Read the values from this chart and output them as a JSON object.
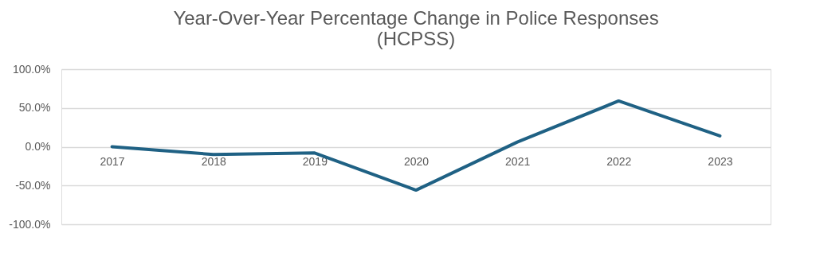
{
  "chart_data": {
    "type": "line",
    "title": [
      "Year-Over-Year Percentage Change in Police Responses",
      "(HCPSS)"
    ],
    "categories": [
      "2017",
      "2018",
      "2019",
      "2020",
      "2021",
      "2022",
      "2023"
    ],
    "series": [
      {
        "color": "#1f6184",
        "values": [
          0,
          -10,
          -8,
          -56,
          6,
          59,
          14
        ]
      }
    ],
    "ylim": [
      -100,
      100
    ],
    "yticks": [
      {
        "value": -100,
        "label": "-100.0%"
      },
      {
        "value": -50,
        "label": "-50.0%"
      },
      {
        "value": 0,
        "label": "0.0%"
      },
      {
        "value": 50,
        "label": "50.0%"
      },
      {
        "value": 100,
        "label": "100.0%"
      }
    ],
    "grid": "y",
    "legend": false,
    "marker": "none",
    "line_style": "solid"
  }
}
